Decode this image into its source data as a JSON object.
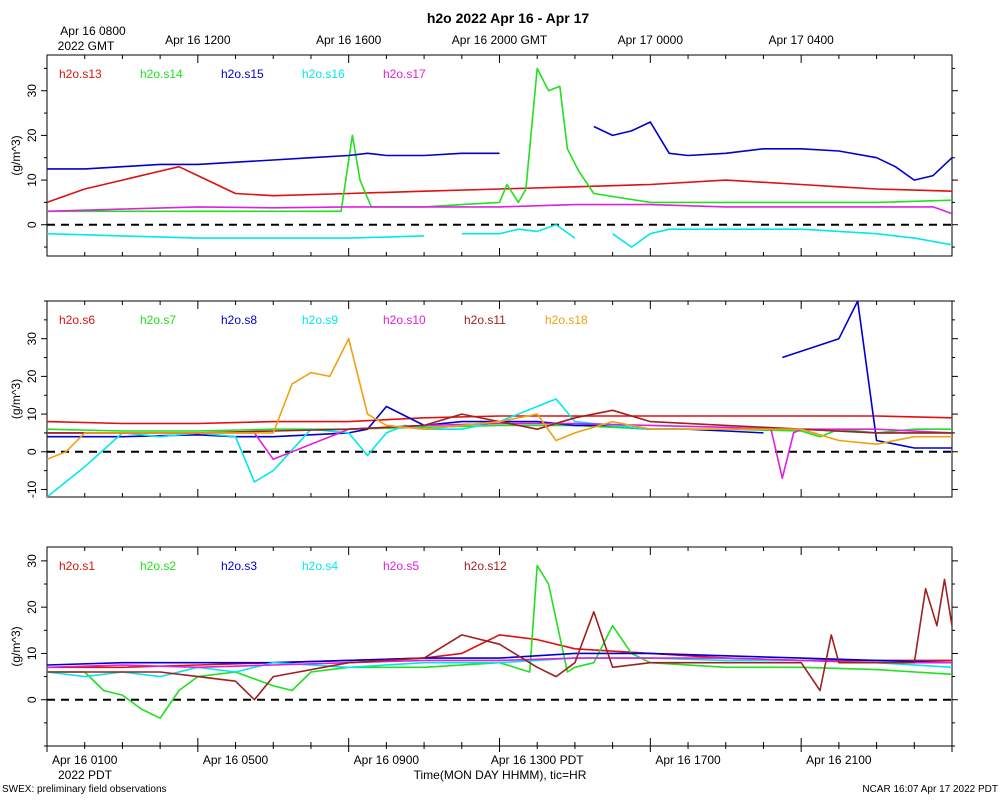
{
  "title": "h2o 2022 Apr 16 - Apr 17",
  "top_axis": {
    "first_label_line1": "Apr 16 0800",
    "first_label_line2": "2022 GMT",
    "labels": [
      "Apr 16 1200",
      "Apr 16 1600",
      "Apr 16 2000 GMT",
      "Apr 17 0000",
      "Apr 17 0400"
    ]
  },
  "bottom_axis": {
    "labels": [
      "Apr 16 0100",
      "Apr 16 0500",
      "Apr 16 0900",
      "Apr 16 1300 PDT",
      "Apr 16 1700",
      "Apr 16 2100"
    ],
    "year_label": "2022 PDT",
    "xlabel": "Time(MON DAY HHMM), tic=HR"
  },
  "footer": {
    "left": "SWEX: preliminary field observations",
    "right": "NCAR 16:07 Apr 17 2022 PDT"
  },
  "colors": {
    "red": "#e01010",
    "green": "#20e020",
    "blue": "#0000d0",
    "cyan": "#00e8ee",
    "magenta": "#e020e0",
    "brown": "#a02020",
    "orange": "#f0a010"
  },
  "chart_data": [
    {
      "type": "line",
      "ylabel": "(g/m^3)",
      "ylim": [
        -7,
        38
      ],
      "yticks": [
        0,
        10,
        20,
        30
      ],
      "xlim": [
        0,
        24
      ],
      "x_unit": "hours since Apr 16 0000 PDT",
      "zero_line": "dashed",
      "series": [
        {
          "name": "h2o.s13",
          "color": "#e01010",
          "x": [
            0,
            1,
            2,
            3,
            3.5,
            4,
            5,
            6,
            8,
            10,
            12,
            14,
            16,
            18,
            20,
            21,
            22,
            24
          ],
          "values": [
            5,
            8,
            10,
            12,
            13,
            11,
            7,
            6.5,
            7,
            7.5,
            8,
            8.5,
            9,
            10,
            9,
            8.5,
            8,
            7.5
          ]
        },
        {
          "name": "h2o.s14",
          "color": "#20e020",
          "x": [
            0,
            2,
            4,
            6,
            7,
            7.8,
            8.1,
            8.3,
            8.6,
            9,
            10,
            11,
            12,
            12.2,
            12.5,
            12.7,
            13,
            13.3,
            13.6,
            13.8,
            14.1,
            14.5,
            16,
            18,
            20,
            22,
            24
          ],
          "values": [
            3,
            3,
            3,
            3,
            3,
            3,
            20,
            10,
            4,
            4,
            4,
            4.5,
            5,
            9,
            5,
            8,
            35,
            30,
            31,
            17,
            12,
            7,
            5,
            5,
            5,
            5,
            5.5
          ]
        },
        {
          "name": "h2o.s15",
          "color": "#0000d0",
          "x": [
            0,
            1,
            2,
            3,
            4,
            5,
            6,
            7,
            8,
            8.5,
            9,
            10,
            11,
            12,
            13,
            13.2,
            14,
            14.5,
            15,
            15.5,
            16,
            16.5,
            17,
            18,
            19,
            20,
            21,
            22,
            22.5,
            23,
            23.5,
            24
          ],
          "values": [
            12.5,
            12.5,
            13,
            13.5,
            13.5,
            14,
            14.5,
            15,
            15.5,
            16,
            15.5,
            15.5,
            16,
            16,
            null,
            16,
            null,
            22,
            20,
            21,
            23,
            16,
            15.5,
            16,
            17,
            17,
            16.5,
            15,
            13,
            10,
            11,
            15
          ]
        },
        {
          "name": "h2o.s16",
          "color": "#00e8ee",
          "x": [
            0,
            2,
            4,
            6,
            8,
            10,
            10.5,
            11,
            12,
            12.5,
            13,
            13.5,
            14,
            14.5,
            15,
            15.5,
            16,
            16.5,
            17,
            18,
            19,
            20,
            21,
            22,
            23,
            24
          ],
          "values": [
            -2,
            -2.5,
            -3,
            -3,
            -3,
            -2.5,
            null,
            -2,
            -2,
            -1,
            -1.5,
            0,
            -3,
            null,
            -2,
            -5,
            -2,
            -1,
            -1,
            -1,
            -1,
            -1,
            -1.5,
            -2,
            -3,
            -4.5
          ]
        },
        {
          "name": "h2o.s17",
          "color": "#e020e0",
          "x": [
            0,
            2,
            4,
            6,
            8,
            10,
            12,
            14,
            16,
            18,
            20,
            22,
            23.5,
            24
          ],
          "values": [
            3,
            3.5,
            4,
            3.8,
            4,
            4,
            4,
            4.5,
            4.5,
            4,
            4,
            4,
            4,
            2.5
          ]
        }
      ]
    },
    {
      "type": "line",
      "ylabel": "(g/m^3)",
      "ylim": [
        -12,
        40
      ],
      "yticks": [
        -10,
        0,
        10,
        20,
        30
      ],
      "xlim": [
        0,
        24
      ],
      "x_unit": "hours since Apr 16 0000 PDT",
      "zero_line": "dashed",
      "series": [
        {
          "name": "h2o.s6",
          "color": "#e01010",
          "x": [
            0,
            2,
            4,
            6,
            8,
            10,
            12,
            14,
            16,
            18,
            20,
            22,
            24
          ],
          "values": [
            8,
            7.5,
            7.5,
            8,
            8,
            9,
            9.5,
            9.5,
            9.5,
            9.5,
            9.5,
            9.5,
            9
          ]
        },
        {
          "name": "h2o.s7",
          "color": "#20e020",
          "x": [
            0,
            2,
            4,
            6,
            8,
            10,
            12,
            14,
            16,
            18,
            20,
            20.5,
            21,
            22,
            23,
            24
          ],
          "values": [
            6,
            5.5,
            5.5,
            6,
            6,
            6.5,
            7,
            7,
            6,
            6,
            5.5,
            4,
            6,
            5,
            6,
            6
          ]
        },
        {
          "name": "h2o.s8",
          "color": "#0000d0",
          "x": [
            0,
            1,
            2,
            4,
            5,
            6,
            7,
            8,
            8.5,
            9,
            10,
            11,
            12,
            13,
            14,
            15,
            16,
            17,
            18,
            19,
            19.3,
            19.5,
            21,
            21.5,
            22,
            22.5,
            23,
            24
          ],
          "values": [
            4,
            4,
            4,
            4.5,
            4,
            4,
            4.5,
            5,
            6,
            12,
            7,
            8,
            8,
            8,
            7,
            7,
            6,
            6,
            5.5,
            5,
            null,
            25,
            30,
            40,
            3,
            2,
            1,
            1
          ]
        },
        {
          "name": "h2o.s9",
          "color": "#00e8ee",
          "x": [
            0,
            1,
            2,
            3,
            4,
            5,
            5.5,
            6,
            7,
            8,
            8.5,
            9,
            9.5,
            10,
            11,
            12,
            13,
            13.5,
            14,
            15,
            16,
            18,
            20,
            22,
            24
          ],
          "values": [
            -12,
            -4,
            5,
            4,
            5,
            4,
            -8,
            -5,
            6,
            5,
            -1,
            5,
            7,
            6,
            6,
            8,
            12,
            14,
            8,
            7,
            6,
            6,
            6,
            5,
            5
          ]
        },
        {
          "name": "h2o.s10",
          "color": "#e020e0",
          "x": [
            0,
            2,
            4,
            5.5,
            6,
            8,
            10,
            12,
            14,
            16,
            18,
            19.2,
            19.5,
            19.8,
            20,
            22,
            24
          ],
          "values": [
            5,
            5,
            5,
            5,
            -2,
            6,
            7,
            7.5,
            7.5,
            7,
            6.5,
            6,
            -7,
            5,
            6,
            6,
            5
          ]
        },
        {
          "name": "h2o.s11",
          "color": "#a02020",
          "x": [
            0,
            2,
            4,
            6,
            8,
            10,
            11,
            12,
            13,
            14,
            15,
            16,
            18,
            20,
            22,
            24
          ],
          "values": [
            5,
            5,
            5,
            5.5,
            6,
            7,
            10,
            8,
            6,
            9,
            11,
            8,
            7,
            6,
            5,
            5
          ]
        },
        {
          "name": "h2o.s18",
          "color": "#f0a010",
          "x": [
            0,
            0.5,
            1,
            2,
            4,
            6,
            6.5,
            7,
            7.5,
            8,
            8.5,
            9,
            10,
            11,
            12,
            13,
            13.5,
            14,
            15,
            16,
            18,
            20,
            21,
            22,
            23,
            24
          ],
          "values": [
            -2,
            0,
            5,
            5,
            5,
            5,
            18,
            21,
            20,
            30,
            10,
            7,
            6,
            7,
            8,
            10,
            3,
            5,
            8,
            6,
            6,
            6,
            3,
            2,
            4,
            4
          ]
        }
      ]
    },
    {
      "type": "line",
      "ylabel": "(g/m^3)",
      "ylim": [
        -10,
        33
      ],
      "yticks": [
        0,
        10,
        20,
        30
      ],
      "xlim": [
        0,
        24
      ],
      "x_unit": "hours since Apr 16 0000 PDT",
      "zero_line": "dashed",
      "series": [
        {
          "name": "h2o.s1",
          "color": "#e01010",
          "x": [
            0,
            2,
            4,
            6,
            8,
            10,
            11,
            12,
            13,
            14,
            16,
            18,
            20,
            22,
            24
          ],
          "values": [
            7,
            7,
            7.5,
            8,
            8.5,
            9,
            10,
            14,
            13,
            11,
            10,
            9,
            8.5,
            8.5,
            8.5
          ]
        },
        {
          "name": "h2o.s2",
          "color": "#20e020",
          "x": [
            0,
            1,
            1.5,
            2,
            2.5,
            3,
            3.5,
            4,
            5,
            6,
            6.5,
            7,
            8,
            10,
            12,
            12.8,
            13,
            13.3,
            13.8,
            14,
            14.5,
            15,
            15.5,
            16,
            18,
            20,
            22,
            24
          ],
          "values": [
            6,
            6,
            2,
            1,
            -2,
            -4,
            2,
            5,
            6,
            3,
            2,
            6,
            7,
            7,
            8,
            6,
            29,
            25,
            6,
            7,
            8,
            16,
            10,
            8,
            7,
            7,
            6.5,
            5.5
          ]
        },
        {
          "name": "h2o.s3",
          "color": "#0000d0",
          "x": [
            0,
            2,
            4,
            6,
            8,
            10,
            12,
            14,
            16,
            18,
            20,
            22,
            24
          ],
          "values": [
            7.5,
            8,
            8,
            8,
            8.5,
            9,
            9,
            10,
            10,
            9.5,
            9,
            8.5,
            8
          ]
        },
        {
          "name": "h2o.s4",
          "color": "#00e8ee",
          "x": [
            0,
            1,
            2,
            3,
            4,
            5,
            6,
            8,
            10,
            12,
            14,
            16,
            18,
            20,
            22,
            24
          ],
          "values": [
            6,
            5,
            6,
            5,
            7,
            6,
            8,
            7,
            8,
            8,
            9,
            9,
            8.5,
            8.5,
            8,
            7
          ]
        },
        {
          "name": "h2o.s5",
          "color": "#e020e0",
          "x": [
            0,
            2,
            4,
            6,
            8,
            10,
            12,
            14,
            16,
            18,
            20,
            22,
            24
          ],
          "values": [
            7,
            7.5,
            7,
            7.5,
            8,
            8.5,
            8.5,
            9,
            9,
            9,
            8.5,
            8,
            8
          ]
        },
        {
          "name": "h2o.s12",
          "color": "#a02020",
          "x": [
            0,
            2,
            3,
            4,
            5,
            5.5,
            6,
            8,
            10,
            11,
            12,
            13,
            13.5,
            14,
            14.5,
            15,
            16,
            18,
            20,
            20.5,
            20.8,
            21,
            22,
            23,
            23.3,
            23.6,
            23.8,
            24
          ],
          "values": [
            6,
            6,
            6,
            5,
            4,
            0,
            5,
            8,
            9,
            14,
            12,
            7,
            5,
            8,
            19,
            7,
            8,
            8,
            8,
            2,
            14,
            8,
            8,
            8,
            24,
            16,
            26,
            16
          ]
        }
      ]
    }
  ]
}
